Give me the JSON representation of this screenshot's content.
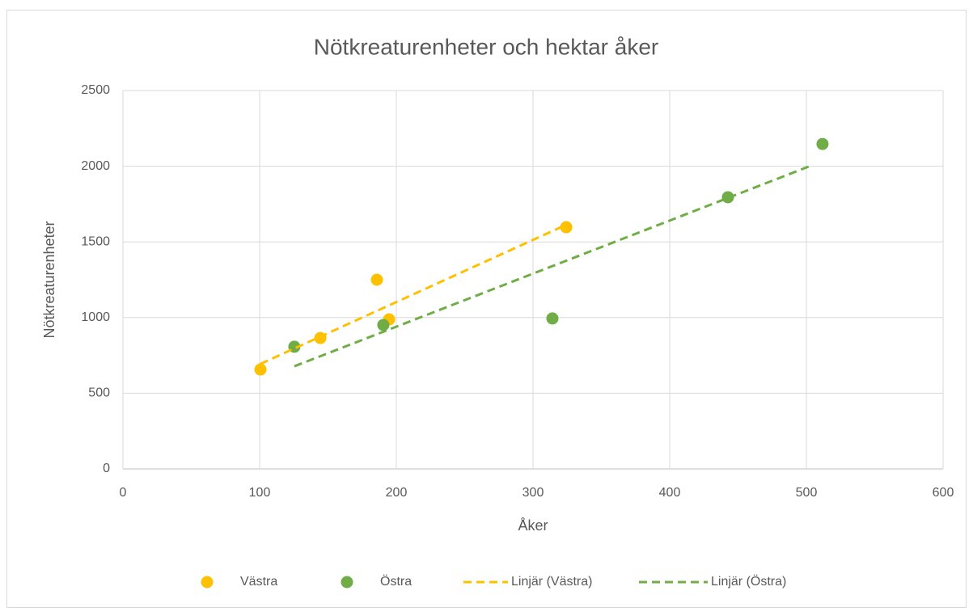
{
  "chart_data": {
    "type": "scatter",
    "title": "Nötkreaturenheter och hektar åker",
    "x_label": "Åker",
    "y_label": "Nötkreaturenheter",
    "xlim": [
      0,
      600
    ],
    "xticks": [
      0,
      100,
      200,
      300,
      400,
      500,
      600
    ],
    "ylim": [
      0,
      2500
    ],
    "yticks": [
      0,
      500,
      1000,
      1500,
      2000,
      2500
    ],
    "grid": true,
    "legend": "bottom",
    "series": [
      {
        "name": "Västra",
        "color": "#FFC000",
        "x": [
          100.6,
          144.4,
          185.8,
          194.7,
          324.3
        ],
        "values": [
          657,
          865,
          1250,
          988,
          1597
        ]
      },
      {
        "name": "Östra",
        "color": "#70AD47",
        "x": [
          125.4,
          190.5,
          314.2,
          442.6,
          511.8
        ],
        "values": [
          807,
          951,
          994,
          1795,
          2147
        ]
      },
      {
        "name": "Linjär (Västra)",
        "color": "#FFC000",
        "dashed": true,
        "x": [
          100.6,
          324.3
        ],
        "values": [
          694,
          1613
        ]
      },
      {
        "name": "Linjär (Östra)",
        "color": "#70AD47",
        "dashed": true,
        "x": [
          125.4,
          501.8
        ],
        "values": [
          678,
          1998
        ]
      }
    ]
  }
}
